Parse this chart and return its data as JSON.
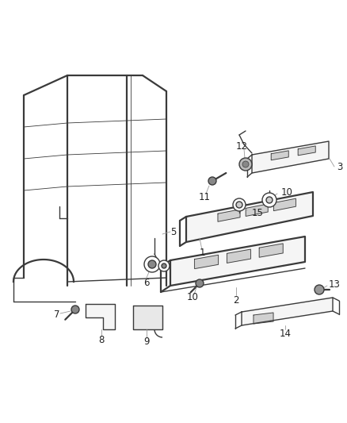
{
  "bg_color": "#ffffff",
  "line_color": "#3a3a3a",
  "label_color": "#222222",
  "lw": 1.0,
  "lw2": 1.6,
  "lw_thin": 0.6,
  "gray_leader": "#999999",
  "part_fill": "#f5f5f5",
  "dark_fill": "#888888"
}
